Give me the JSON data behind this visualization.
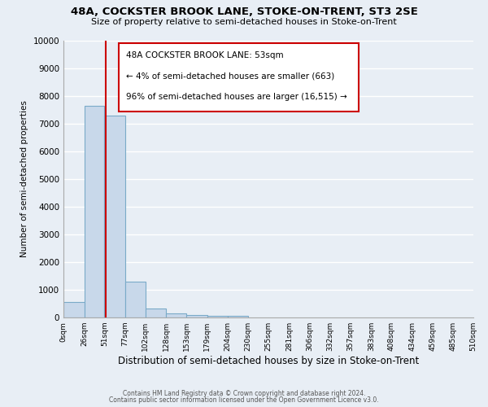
{
  "title": "48A, COCKSTER BROOK LANE, STOKE-ON-TRENT, ST3 2SE",
  "subtitle": "Size of property relative to semi-detached houses in Stoke-on-Trent",
  "xlabel": "Distribution of semi-detached houses by size in Stoke-on-Trent",
  "ylabel": "Number of semi-detached properties",
  "bin_edges": [
    0,
    26,
    51,
    77,
    102,
    128,
    153,
    179,
    204,
    230,
    255,
    281,
    306,
    332,
    357,
    383,
    408,
    434,
    459,
    485,
    510
  ],
  "bar_heights": [
    550,
    7650,
    7300,
    1300,
    330,
    150,
    100,
    65,
    50,
    0,
    0,
    0,
    0,
    0,
    0,
    0,
    0,
    0,
    0,
    0
  ],
  "bar_color": "#c8d8ea",
  "bar_edge_color": "#7aaac8",
  "background_color": "#e8eef5",
  "grid_color": "#ffffff",
  "property_line_x": 53,
  "property_line_color": "#cc0000",
  "annotation_box_color": "#cc0000",
  "annotation_title": "48A COCKSTER BROOK LANE: 53sqm",
  "annotation_line1": "← 4% of semi-detached houses are smaller (663)",
  "annotation_line2": "96% of semi-detached houses are larger (16,515) →",
  "ylim": [
    0,
    10000
  ],
  "yticks": [
    0,
    1000,
    2000,
    3000,
    4000,
    5000,
    6000,
    7000,
    8000,
    9000,
    10000
  ],
  "ytick_labels": [
    "0",
    "1000",
    "2000",
    "3000",
    "4000",
    "5000",
    "6000",
    "7000",
    "8000",
    "9000",
    "10000"
  ],
  "tick_labels": [
    "0sqm",
    "26sqm",
    "51sqm",
    "77sqm",
    "102sqm",
    "128sqm",
    "153sqm",
    "179sqm",
    "204sqm",
    "230sqm",
    "255sqm",
    "281sqm",
    "306sqm",
    "332sqm",
    "357sqm",
    "383sqm",
    "408sqm",
    "434sqm",
    "459sqm",
    "485sqm",
    "510sqm"
  ],
  "footer_line1": "Contains HM Land Registry data © Crown copyright and database right 2024.",
  "footer_line2": "Contains public sector information licensed under the Open Government Licence v3.0."
}
